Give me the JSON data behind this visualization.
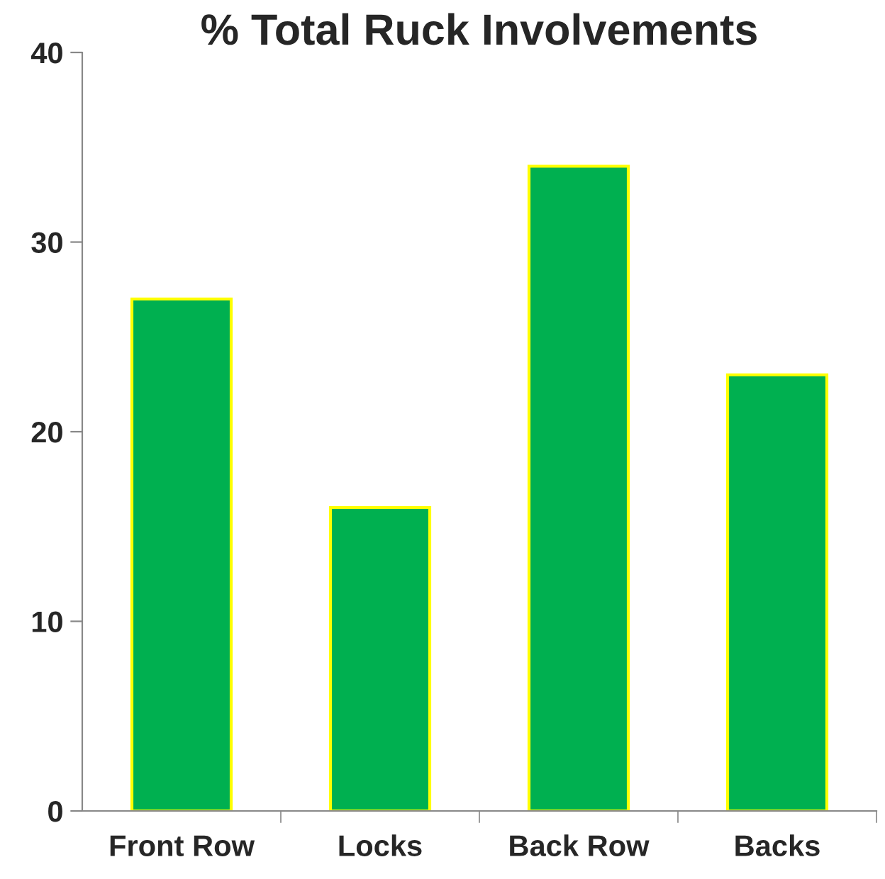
{
  "chart_data": {
    "type": "bar",
    "title": "% Total Ruck Involvements",
    "categories": [
      "Front Row",
      "Locks",
      "Back Row",
      "Backs"
    ],
    "values": [
      27,
      16,
      34,
      23
    ],
    "color": "#00b050",
    "ylim": [
      0,
      40
    ],
    "yticks": [
      0,
      10,
      20,
      30,
      40
    ],
    "grid": false,
    "legend": false
  }
}
